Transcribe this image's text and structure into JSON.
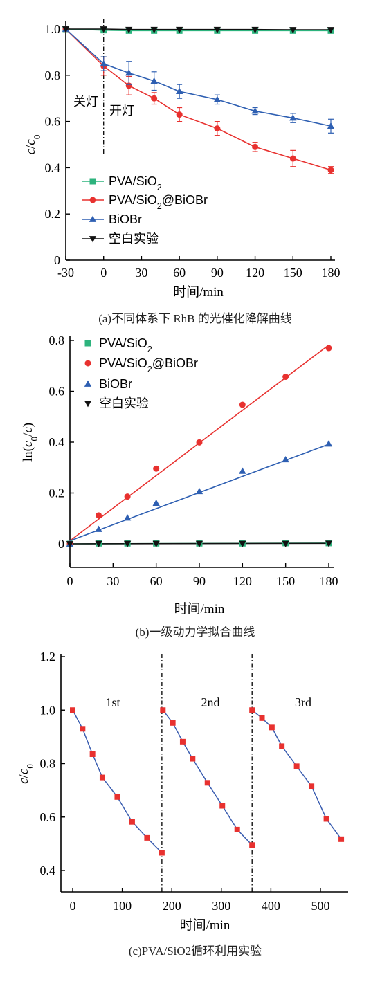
{
  "chart_data": [
    {
      "type": "line",
      "caption": "(a)不同体系下 RhB 的光催化降解曲线",
      "xlabel": "时间/min",
      "ylabel": "c/c0",
      "x_ticks": [
        "-30",
        "0",
        "30",
        "60",
        "90",
        "120",
        "150",
        "180"
      ],
      "y_ticks": [
        "0",
        "0.2",
        "0.4",
        "0.6",
        "0.8",
        "1.0"
      ],
      "xlim": [
        -30,
        180
      ],
      "ylim": [
        0,
        1.0
      ],
      "annotations": [
        "关灯",
        "开灯"
      ],
      "x": [
        -30,
        0,
        20,
        40,
        60,
        90,
        120,
        150,
        180
      ],
      "series": [
        {
          "name": "PVA/SiO2",
          "color": "#2db37d",
          "marker": "square",
          "values": [
            1.0,
            0.995,
            0.993,
            0.993,
            0.993,
            0.993,
            0.993,
            0.993,
            0.993
          ]
        },
        {
          "name": "PVA/SiO2@BiOBr",
          "color": "#e8312f",
          "marker": "circle",
          "values": [
            1.0,
            0.84,
            0.755,
            0.7,
            0.63,
            0.57,
            0.49,
            0.44,
            0.39
          ],
          "errors": [
            0,
            0.04,
            0.04,
            0.025,
            0.03,
            0.03,
            0.02,
            0.035,
            0.015
          ]
        },
        {
          "name": "BiOBr",
          "color": "#2e5fb2",
          "marker": "triangle-up",
          "values": [
            1.0,
            0.85,
            0.81,
            0.775,
            0.73,
            0.695,
            0.645,
            0.615,
            0.58
          ],
          "errors": [
            0,
            0.03,
            0.05,
            0.04,
            0.03,
            0.02,
            0.015,
            0.02,
            0.03
          ]
        },
        {
          "name": "空白实验",
          "color": "#111111",
          "marker": "triangle-down",
          "values": [
            1.0,
            1.0,
            0.998,
            0.998,
            0.998,
            0.998,
            0.998,
            0.997,
            0.997
          ]
        }
      ]
    },
    {
      "type": "scatter",
      "caption": "(b)一级动力学拟合曲线",
      "xlabel": "时间/min",
      "ylabel": "ln(c0/c)",
      "x_ticks": [
        "0",
        "30",
        "60",
        "90",
        "120",
        "150",
        "180"
      ],
      "y_ticks": [
        "0",
        "0.2",
        "0.4",
        "0.6",
        "0.8"
      ],
      "xlim": [
        0,
        180
      ],
      "ylim": [
        -0.1,
        0.8
      ],
      "x": [
        0,
        20,
        40,
        60,
        90,
        120,
        150,
        180
      ],
      "series": [
        {
          "name": "PVA/SiO2",
          "color": "#2db37d",
          "marker": "square",
          "values": [
            0,
            0.002,
            0.002,
            0.002,
            0.002,
            0.002,
            0.003,
            0.003
          ],
          "fit": [
            0.0,
            0.003
          ]
        },
        {
          "name": "PVA/SiO2@BiOBr",
          "color": "#e8312f",
          "marker": "circle",
          "values": [
            0,
            0.112,
            0.186,
            0.296,
            0.399,
            0.547,
            0.657,
            0.77
          ],
          "fit": [
            0.012,
            0.782
          ]
        },
        {
          "name": "BiOBr",
          "color": "#2e5fb2",
          "marker": "triangle-up",
          "values": [
            0,
            0.057,
            0.102,
            0.16,
            0.206,
            0.286,
            0.331,
            0.393
          ],
          "fit": [
            0.012,
            0.392
          ]
        },
        {
          "name": "空白实验",
          "color": "#111111",
          "marker": "triangle-down",
          "values": [
            0,
            0.001,
            0.001,
            0.001,
            0.001,
            0.001,
            0.001,
            0.002
          ],
          "fit": [
            0.0,
            0.002
          ]
        }
      ]
    },
    {
      "type": "line",
      "caption": "(c)PVA/SiO2循环利用实验",
      "xlabel": "时间/min",
      "ylabel": "c/c0",
      "x_ticks": [
        "0",
        "100",
        "200",
        "300",
        "400",
        "500"
      ],
      "y_ticks": [
        "0.4",
        "0.6",
        "0.8",
        "1.0",
        "1.2"
      ],
      "xlim": [
        -20,
        550
      ],
      "ylim": [
        0.35,
        1.2
      ],
      "cycle_labels": [
        "1st",
        "2nd",
        "3rd"
      ],
      "dividers": [
        180,
        362
      ],
      "series": [
        {
          "line_color": "#3a5db0",
          "marker_color": "#e8312f",
          "marker": "square",
          "x": [
            0,
            20,
            40,
            60,
            90,
            120,
            150,
            180
          ],
          "values": [
            1.0,
            0.93,
            0.835,
            0.748,
            0.675,
            0.582,
            0.522,
            0.466
          ]
        },
        {
          "line_color": "#3a5db0",
          "marker_color": "#e8312f",
          "marker": "square",
          "x": [
            182,
            202,
            222,
            242,
            272,
            302,
            332,
            362
          ],
          "values": [
            1.0,
            0.952,
            0.882,
            0.818,
            0.728,
            0.642,
            0.553,
            0.495
          ]
        },
        {
          "line_color": "#3a5db0",
          "marker_color": "#e8312f",
          "marker": "square",
          "x": [
            362,
            382,
            402,
            422,
            452,
            482,
            512,
            542
          ],
          "values": [
            1.0,
            0.97,
            0.935,
            0.865,
            0.79,
            0.715,
            0.593,
            0.517
          ]
        }
      ]
    }
  ]
}
